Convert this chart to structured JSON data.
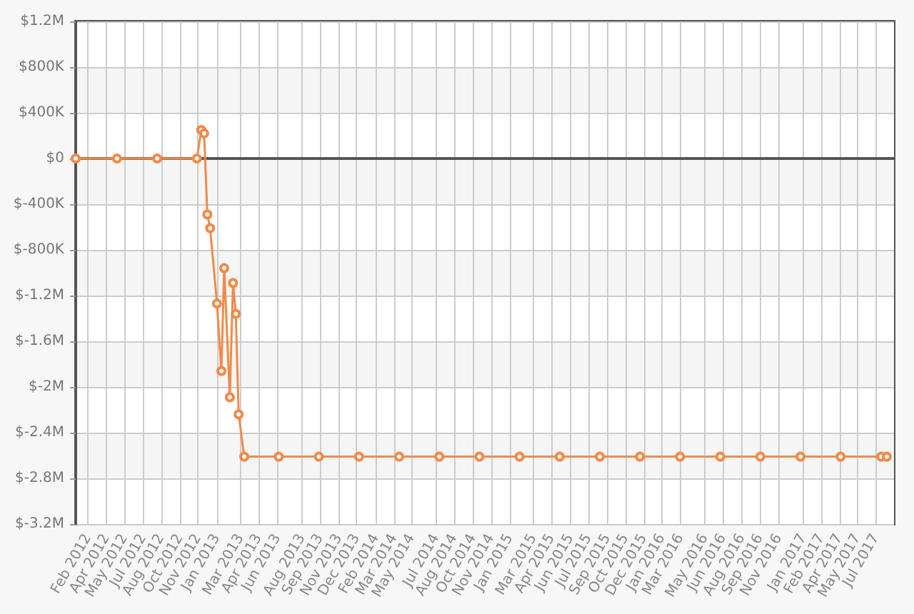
{
  "chart_data": {
    "type": "line",
    "color": "#f08a4b",
    "marker": "circle",
    "grid": true,
    "x": [
      "2012-01-15",
      "2012-04-27",
      "2012-08-05",
      "2012-11-12",
      "2012-11-23",
      "2012-11-30",
      "2012-12-08",
      "2012-12-15",
      "2013-01-01",
      "2013-01-12",
      "2013-01-19",
      "2013-02-02",
      "2013-02-10",
      "2013-02-17",
      "2013-02-24",
      "2013-03-10",
      "2013-06-04",
      "2013-09-12",
      "2013-12-21",
      "2014-03-31",
      "2014-07-09",
      "2014-10-17",
      "2015-01-25",
      "2015-05-05",
      "2015-08-13",
      "2015-11-21",
      "2016-02-29",
      "2016-06-08",
      "2016-09-16",
      "2016-12-25",
      "2017-04-04",
      "2017-07-14",
      "2017-07-28"
    ],
    "values": [
      0,
      0,
      0,
      0,
      250000,
      220000,
      -490000,
      -610000,
      -1270000,
      -1860000,
      -960000,
      -2090000,
      -1090000,
      -1360000,
      -2240000,
      -2610000,
      -2610000,
      -2610000,
      -2610000,
      -2610000,
      -2610000,
      -2610000,
      -2610000,
      -2610000,
      -2610000,
      -2610000,
      -2610000,
      -2610000,
      -2610000,
      -2610000,
      -2610000,
      -2610000,
      -2610000
    ],
    "xlim": [
      "2012-01-15",
      "2017-08-15"
    ],
    "xticks": [
      {
        "value": "2012-02-15",
        "label": "Feb 2012"
      },
      {
        "value": "2012-04-01",
        "label": "Apr 2012"
      },
      {
        "value": "2012-05-16",
        "label": "May 2012"
      },
      {
        "value": "2012-07-01",
        "label": "Jul 2012"
      },
      {
        "value": "2012-08-15",
        "label": "Aug 2012"
      },
      {
        "value": "2012-10-01",
        "label": "Oct 2012"
      },
      {
        "value": "2012-11-15",
        "label": "Nov 2012"
      },
      {
        "value": "2013-01-01",
        "label": "Jan 2013"
      },
      {
        "value": "2013-03-01",
        "label": "Mar 2013"
      },
      {
        "value": "2013-04-15",
        "label": "Apr 2013"
      },
      {
        "value": "2013-06-01",
        "label": "Jun 2013"
      },
      {
        "value": "2013-08-01",
        "label": "Aug 2013"
      },
      {
        "value": "2013-09-15",
        "label": "Sep 2013"
      },
      {
        "value": "2013-11-01",
        "label": "Nov 2013"
      },
      {
        "value": "2013-12-15",
        "label": "Dec 2013"
      },
      {
        "value": "2014-02-01",
        "label": "Feb 2014"
      },
      {
        "value": "2014-03-18",
        "label": "Mar 2014"
      },
      {
        "value": "2014-05-01",
        "label": "May 2014"
      },
      {
        "value": "2014-07-01",
        "label": "Jul 2014"
      },
      {
        "value": "2014-08-15",
        "label": "Aug 2014"
      },
      {
        "value": "2014-10-01",
        "label": "Oct 2014"
      },
      {
        "value": "2014-11-15",
        "label": "Nov 2014"
      },
      {
        "value": "2015-01-01",
        "label": "Jan 2015"
      },
      {
        "value": "2015-03-01",
        "label": "Mar 2015"
      },
      {
        "value": "2015-04-15",
        "label": "Apr 2015"
      },
      {
        "value": "2015-06-01",
        "label": "Jun 2015"
      },
      {
        "value": "2015-07-16",
        "label": "Jul 2015"
      },
      {
        "value": "2015-09-01",
        "label": "Sep 2015"
      },
      {
        "value": "2015-10-16",
        "label": "Oct 2015"
      },
      {
        "value": "2015-12-01",
        "label": "Dec 2015"
      },
      {
        "value": "2016-01-15",
        "label": "Jan 2016"
      },
      {
        "value": "2016-03-01",
        "label": "Mar 2016"
      },
      {
        "value": "2016-05-01",
        "label": "May 2016"
      },
      {
        "value": "2016-06-15",
        "label": "Jun 2016"
      },
      {
        "value": "2016-08-01",
        "label": "Aug 2016"
      },
      {
        "value": "2016-09-15",
        "label": "Sep 2016"
      },
      {
        "value": "2016-11-01",
        "label": "Nov 2016"
      },
      {
        "value": "2017-01-01",
        "label": "Jan 2017"
      },
      {
        "value": "2017-02-15",
        "label": "Feb 2017"
      },
      {
        "value": "2017-04-01",
        "label": "Apr 2017"
      },
      {
        "value": "2017-05-16",
        "label": "May 2017"
      },
      {
        "value": "2017-07-01",
        "label": "Jul 2017"
      }
    ],
    "ylim": [
      -3200000,
      1200000
    ],
    "yticks": [
      {
        "value": -3200000,
        "label": "$-3.2M"
      },
      {
        "value": -2800000,
        "label": "$-2.8M"
      },
      {
        "value": -2400000,
        "label": "$-2.4M"
      },
      {
        "value": -2000000,
        "label": "$-2M"
      },
      {
        "value": -1600000,
        "label": "$-1.6M"
      },
      {
        "value": -1200000,
        "label": "$-1.2M"
      },
      {
        "value": -800000,
        "label": "$-800K"
      },
      {
        "value": -400000,
        "label": "$-400K"
      },
      {
        "value": 0,
        "label": "$0"
      },
      {
        "value": 400000,
        "label": "$400K"
      },
      {
        "value": 800000,
        "label": "$800K"
      },
      {
        "value": 1200000,
        "label": "$1.2M"
      }
    ]
  }
}
